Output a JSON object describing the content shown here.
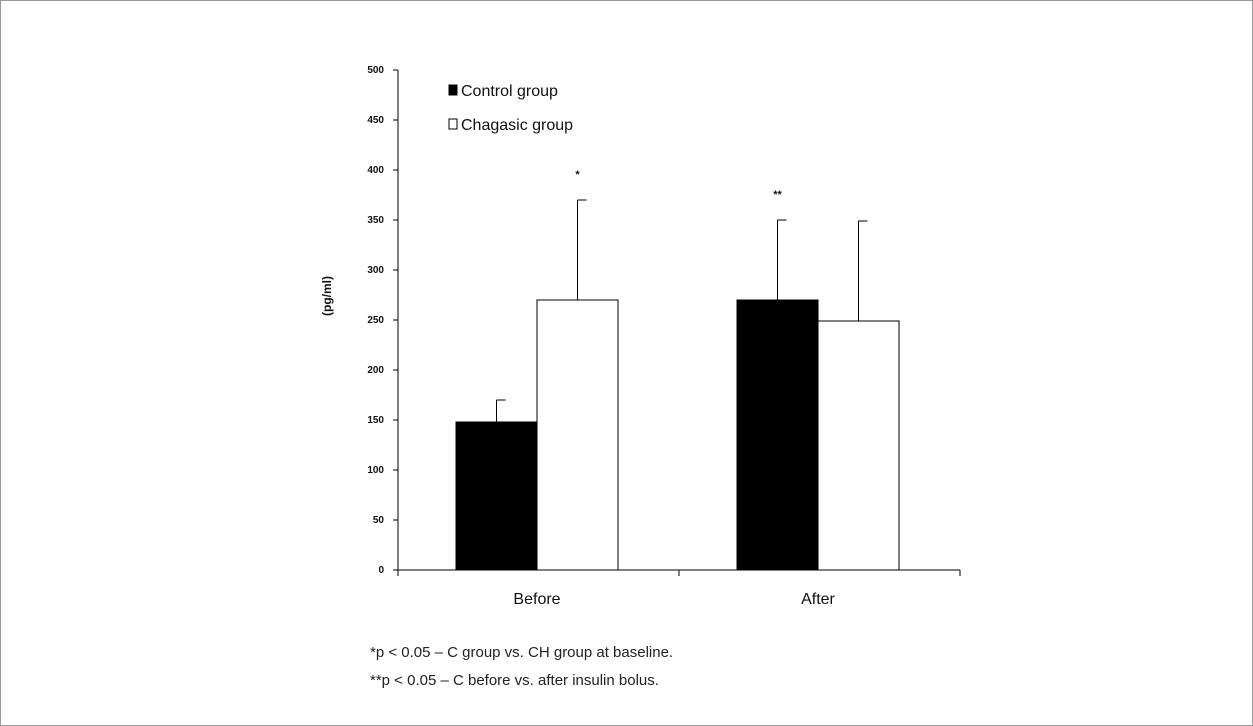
{
  "chart_data": {
    "type": "bar",
    "categories": [
      "Before",
      "After"
    ],
    "series": [
      {
        "name": "Control group",
        "values": [
          148,
          270
        ],
        "errors": [
          22,
          80
        ],
        "fill": "#000000"
      },
      {
        "name": "Chagasic group",
        "values": [
          270,
          249
        ],
        "errors": [
          100,
          100
        ],
        "fill": "#ffffff"
      }
    ],
    "ylabel": "(pg/ml)",
    "ylim": [
      0,
      500
    ],
    "yticks": [
      0,
      50,
      100,
      150,
      200,
      250,
      300,
      350,
      400,
      450,
      500
    ],
    "significance": [
      {
        "label": "*",
        "category": 0,
        "series": 1
      },
      {
        "label": "**",
        "category": 1,
        "series": 0
      }
    ],
    "legend_position": "top-left",
    "grid": false
  },
  "footnotes": [
    "*p < 0.05 – C group vs. CH group at baseline.",
    "**p < 0.05 – C before vs. after insulin bolus."
  ]
}
